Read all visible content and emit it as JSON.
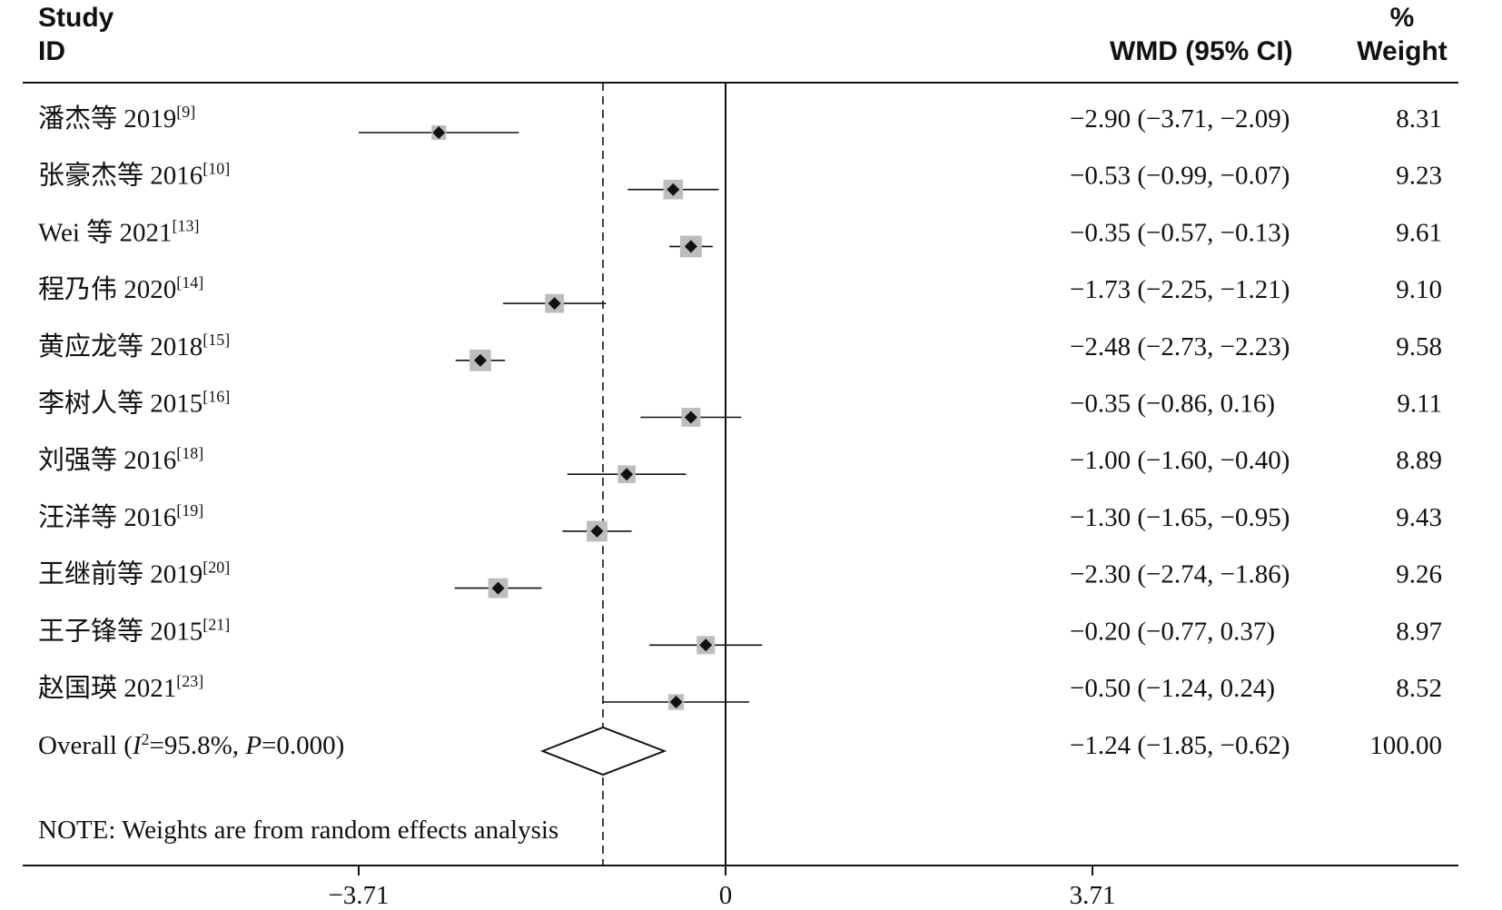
{
  "header": {
    "study_line1": "Study",
    "study_line2": "ID",
    "effect_label": "WMD (95% CI)",
    "weight_line1": "%",
    "weight_line2": "Weight"
  },
  "chart_data": {
    "type": "forest",
    "studies": [
      {
        "name": "潘杰等 2019",
        "ref": "[9]",
        "wmd": -2.9,
        "lo": -3.71,
        "hi": -2.09,
        "ci_text": "−2.90 (−3.71, −2.09)",
        "weight": "8.31"
      },
      {
        "name": "张豪杰等 2016",
        "ref": "[10]",
        "wmd": -0.53,
        "lo": -0.99,
        "hi": -0.07,
        "ci_text": "−0.53 (−0.99, −0.07)",
        "weight": "9.23"
      },
      {
        "name": "Wei 等 2021",
        "ref": "[13]",
        "wmd": -0.35,
        "lo": -0.57,
        "hi": -0.13,
        "ci_text": "−0.35 (−0.57, −0.13)",
        "weight": "9.61"
      },
      {
        "name": "程乃伟 2020",
        "ref": "[14]",
        "wmd": -1.73,
        "lo": -2.25,
        "hi": -1.21,
        "ci_text": "−1.73 (−2.25, −1.21)",
        "weight": "9.10"
      },
      {
        "name": "黄应龙等 2018",
        "ref": "[15]",
        "wmd": -2.48,
        "lo": -2.73,
        "hi": -2.23,
        "ci_text": "−2.48 (−2.73, −2.23)",
        "weight": "9.58"
      },
      {
        "name": "李树人等 2015",
        "ref": "[16]",
        "wmd": -0.35,
        "lo": -0.86,
        "hi": 0.16,
        "ci_text": "−0.35 (−0.86, 0.16)",
        "weight": "9.11"
      },
      {
        "name": "刘强等 2016",
        "ref": "[18]",
        "wmd": -1.0,
        "lo": -1.6,
        "hi": -0.4,
        "ci_text": "−1.00 (−1.60, −0.40)",
        "weight": "8.89"
      },
      {
        "name": "汪洋等 2016",
        "ref": "[19]",
        "wmd": -1.3,
        "lo": -1.65,
        "hi": -0.95,
        "ci_text": "−1.30 (−1.65, −0.95)",
        "weight": "9.43"
      },
      {
        "name": "王继前等 2019",
        "ref": "[20]",
        "wmd": -2.3,
        "lo": -2.74,
        "hi": -1.86,
        "ci_text": "−2.30 (−2.74, −1.86)",
        "weight": "9.26"
      },
      {
        "name": "王子锋等 2015",
        "ref": "[21]",
        "wmd": -0.2,
        "lo": -0.77,
        "hi": 0.37,
        "ci_text": "−0.20 (−0.77, 0.37)",
        "weight": "8.97"
      },
      {
        "name": "赵国瑛 2021",
        "ref": "[23]",
        "wmd": -0.5,
        "lo": -1.24,
        "hi": 0.24,
        "ci_text": "−0.50 (−1.24, 0.24)",
        "weight": "8.52"
      }
    ],
    "overall": {
      "prefix": "Overall (",
      "i_letter": "I",
      "i_sup": "2",
      "mid": "=95.8%, ",
      "p_letter": "P",
      "suffix": "=0.000)",
      "wmd": -1.24,
      "lo": -1.85,
      "hi": -0.62,
      "ci_text": "−1.24 (−1.85, −0.62)",
      "weight": "100.00"
    },
    "note": "NOTE: Weights are from random effects analysis",
    "xlim": [
      -3.71,
      3.71
    ],
    "xticks": [
      {
        "value": -3.71,
        "label": "−3.71"
      },
      {
        "value": 0,
        "label": "0"
      },
      {
        "value": 3.71,
        "label": "3.71"
      }
    ],
    "null_line": 0,
    "overall_line": -1.24
  }
}
